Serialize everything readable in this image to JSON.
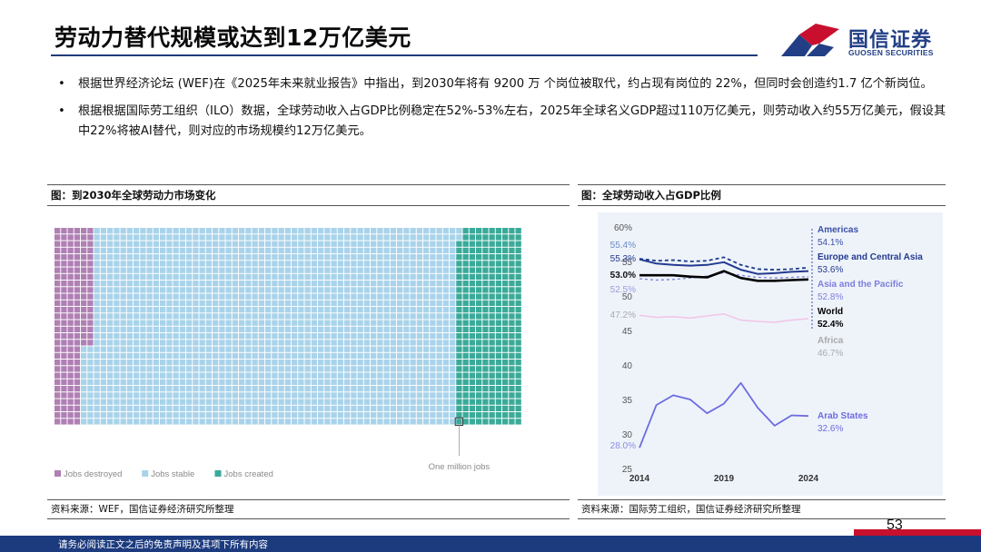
{
  "header": {
    "title": "劳动力替代规模或达到12万亿美元",
    "logo_cn": "国信证券",
    "logo_en": "GUOSEN SECURITIES"
  },
  "colors": {
    "brand_blue": "#223f86",
    "brand_red": "#c8102e",
    "jobs_destroyed": "#b07fb4",
    "jobs_stable": "#a9d3ea",
    "jobs_created": "#3aaa99",
    "americas": "#1f3b8c",
    "europe_ca": "#233a8f",
    "asia_pacific": "#7d7ddc",
    "world": "#000000",
    "africa": "#f2c6e8",
    "arab_states": "#6c6ce0"
  },
  "bullets": [
    "根据世界经济论坛 (WEF)在《2025年未来就业报告》中指出，到2030年将有 9200 万 个岗位被取代，约占现有岗位的 22%，但同时会创造约1.7 亿个新岗位。",
    "根据根据国际劳工组织（ILO）数据，全球劳动收入占GDP比例稳定在52%-53%左右，2025年全球名义GDP超过110万亿美元，则劳动收入约55万亿美元，假设其中22%将被AI替代，则对应的市场规模约12万亿美元。"
  ],
  "left_panel": {
    "heading": "图：到2030年全球劳动力市场变化",
    "source": "资料来源：WEF，国信证券经济研究所整理"
  },
  "right_panel": {
    "heading": "图：全球劳动收入占GDP比例",
    "source": "资料来源：国际劳工组织，国信证券经济研究所整理"
  },
  "chart_data": [
    {
      "type": "waffle",
      "unit_label": "One million jobs",
      "legend": [
        "Jobs destroyed",
        "Jobs stable",
        "Jobs created"
      ],
      "grid": {
        "rows": 30,
        "cols": 71
      },
      "destroyed_rows_full_cols": 6,
      "destroyed_rows_partial_cols": 4,
      "destroyed_full_rows": 18,
      "created_cols": 9,
      "created_extra_left_rows_from": 2
    },
    {
      "type": "line",
      "x_ticks": [
        "2014",
        "2019",
        "2024"
      ],
      "y_ticks": [
        "25",
        "30",
        "35",
        "40",
        "45",
        "50",
        "55",
        "60%"
      ],
      "ylim": [
        25,
        60
      ],
      "x": [
        2014,
        2015,
        2016,
        2017,
        2018,
        2019,
        2020,
        2021,
        2022,
        2023,
        2024
      ],
      "series": [
        {
          "name": "Americas",
          "end_label": "54.1%",
          "start_label": "55.4%",
          "style": "dashed",
          "values": [
            55.4,
            55.1,
            55.2,
            55.0,
            55.1,
            55.6,
            54.5,
            53.9,
            53.8,
            53.9,
            54.1
          ]
        },
        {
          "name": "Europe and Central Asia",
          "end_label": "53.6%",
          "start_label": "55.3%",
          "style": "solid",
          "values": [
            55.3,
            54.7,
            54.5,
            54.4,
            54.5,
            54.9,
            53.8,
            53.2,
            53.3,
            53.5,
            53.6
          ]
        },
        {
          "name": "Asia and the Pacific",
          "end_label": "52.8%",
          "start_label": "52.5%",
          "style": "dashed-light",
          "values": [
            52.5,
            52.3,
            52.4,
            52.6,
            52.9,
            53.4,
            53.0,
            52.7,
            52.6,
            52.7,
            52.8
          ]
        },
        {
          "name": "World",
          "end_label": "52.4%",
          "start_label": "53.0%",
          "style": "bold",
          "values": [
            53.0,
            53.0,
            53.0,
            52.8,
            52.7,
            53.6,
            52.6,
            52.2,
            52.2,
            52.3,
            52.4
          ]
        },
        {
          "name": "Africa",
          "end_label": "46.7%",
          "start_label": "47.2%",
          "style": "light",
          "values": [
            47.2,
            46.9,
            47.0,
            46.8,
            47.1,
            47.4,
            46.5,
            46.3,
            46.2,
            46.5,
            46.7
          ]
        },
        {
          "name": "Arab States",
          "end_label": "32.6%",
          "start_label": "28.0%",
          "style": "solid-violet",
          "values": [
            28.0,
            34.2,
            35.6,
            35.0,
            33.0,
            34.4,
            37.4,
            33.8,
            31.2,
            32.7,
            32.6
          ]
        }
      ]
    }
  ],
  "page_number": "53",
  "footer": "请务必阅读正文之后的免责声明及其项下所有内容"
}
